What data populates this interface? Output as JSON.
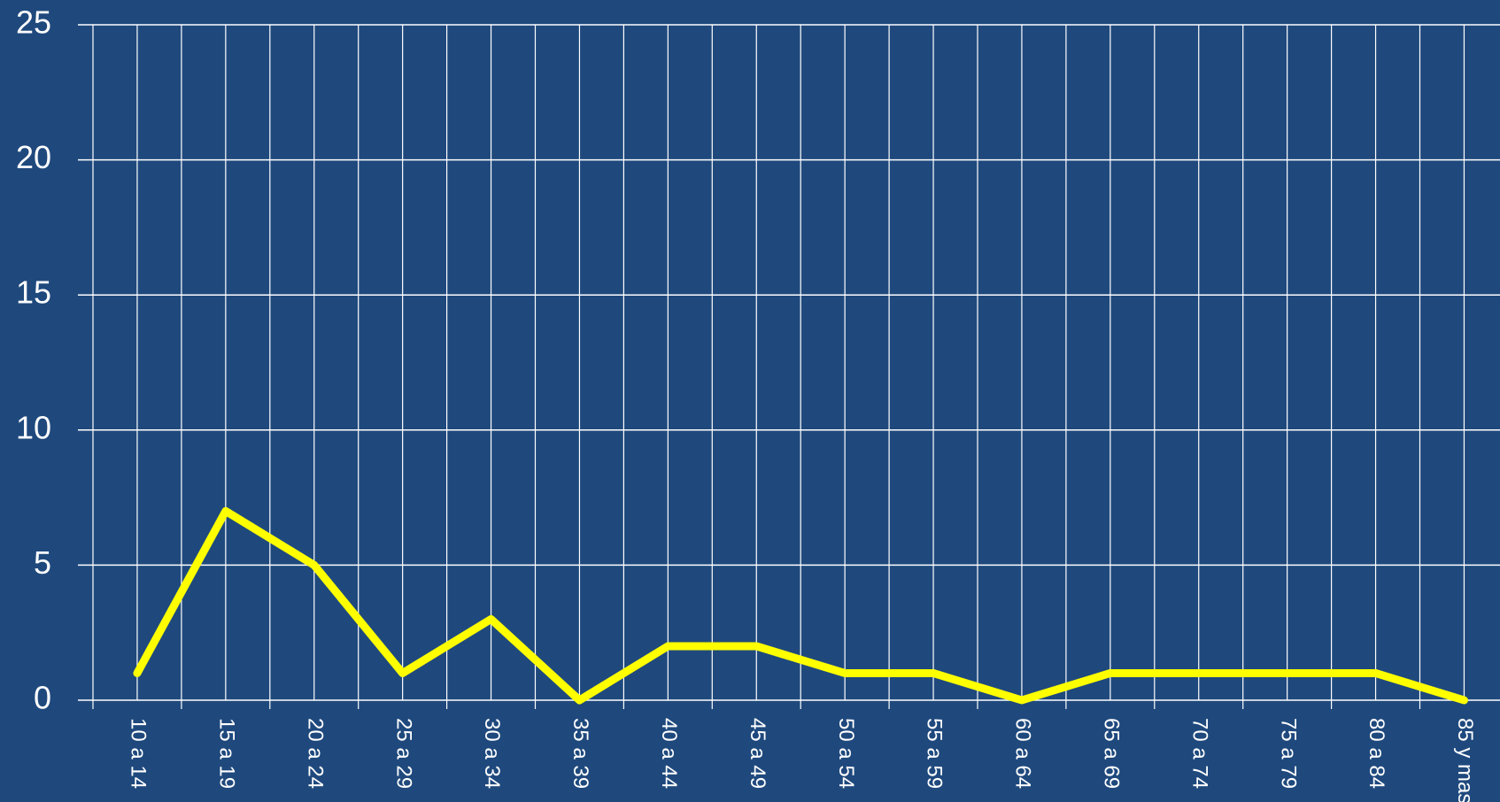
{
  "chart_data": {
    "type": "line",
    "categories": [
      "10 a 14",
      "15 a 19",
      "20 a 24",
      "25 a 29",
      "30 a 34",
      "35 a 39",
      "40 a 44",
      "45 a 49",
      "50 a 54",
      "55 a 59",
      "60 a 64",
      "65 a 69",
      "70 a 74",
      "75 a 79",
      "80 a 84",
      "85 y mas"
    ],
    "values": [
      1,
      7,
      5,
      1,
      3,
      0,
      2,
      2,
      1,
      1,
      0,
      1,
      1,
      1,
      1,
      0
    ],
    "color": "#ffff00",
    "ylim": [
      0,
      25
    ],
    "yticks": [
      0,
      5,
      10,
      15,
      20,
      25
    ],
    "grid": true
  }
}
